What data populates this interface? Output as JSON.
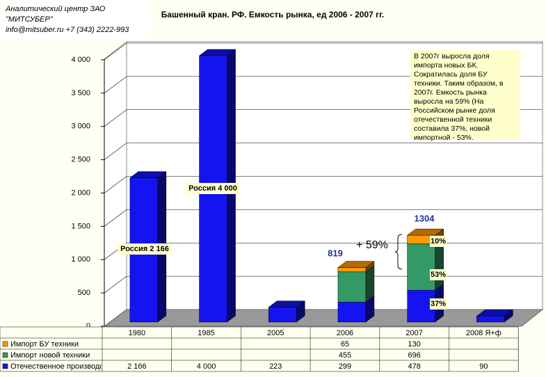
{
  "header": {
    "lines": [
      "Аналитический центр ЗАО \"МИТСУБЕР\"",
      "info@mitsuber.ru +7 (343) 2222-993"
    ]
  },
  "chart_data": {
    "type": "bar3d-stacked",
    "title": "Башенный кран. РФ. Емкость рынка, ед 2006 - 2007 гг.",
    "categories": [
      "1980",
      "1985",
      "2005",
      "2006",
      "2007",
      "2008 Я+ф"
    ],
    "series": [
      {
        "name": "Импорт БУ техники",
        "color": "#ff9900",
        "values": [
          null,
          null,
          null,
          65,
          130,
          null
        ]
      },
      {
        "name": "Импорт новой техники",
        "color": "#339966",
        "values": [
          null,
          null,
          null,
          455,
          696,
          null
        ]
      },
      {
        "name": "Отечественное производство",
        "color": "#1414f0",
        "values": [
          2166,
          4000,
          223,
          299,
          478,
          90
        ],
        "value_labels": [
          "2 166",
          "4 000",
          "223",
          "299",
          "478",
          "90"
        ]
      }
    ],
    "ylim": [
      0,
      4000
    ],
    "yticks": [
      0,
      500,
      {
        "value": 1000,
        "label": "1 000"
      },
      {
        "value": 1500,
        "label": "1 500"
      },
      {
        "value": 2000,
        "label": "2 000"
      },
      {
        "value": 2500,
        "label": "2 500"
      },
      {
        "value": 3000,
        "label": "3 000"
      },
      {
        "value": 3500,
        "label": "3 500"
      },
      {
        "value": 4000,
        "label": "4 000"
      }
    ],
    "grid": true,
    "annotations": [
      "Россия  2 166",
      "Россия  4 000",
      "819",
      "1304",
      "+ 59%",
      "10%",
      "53%",
      "37%"
    ],
    "note": "В 2007г выросла доля импорта новых БК. Сократилась доля БУ техники. Таким образом, в 2007г. Емкость рынка выросла на 59% (На Российском рынке доля отечественной техники составила 37%, новой импортной - 53%."
  }
}
